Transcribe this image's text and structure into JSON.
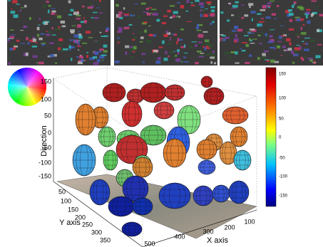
{
  "figure": {
    "z_axis": {
      "label": "Direction",
      "ticks": [
        150,
        100,
        50,
        0,
        -50,
        -100,
        -150
      ]
    },
    "y_axis": {
      "label": "Y axis",
      "ticks": [
        50,
        100,
        150,
        200,
        250,
        300,
        350
      ]
    },
    "x_axis": {
      "label": "X axis",
      "ticks": [
        100,
        200,
        300,
        400,
        500
      ]
    },
    "colorbar": {
      "ticks": [
        150,
        100,
        50,
        0,
        -50,
        -100,
        -150
      ]
    }
  }
}
